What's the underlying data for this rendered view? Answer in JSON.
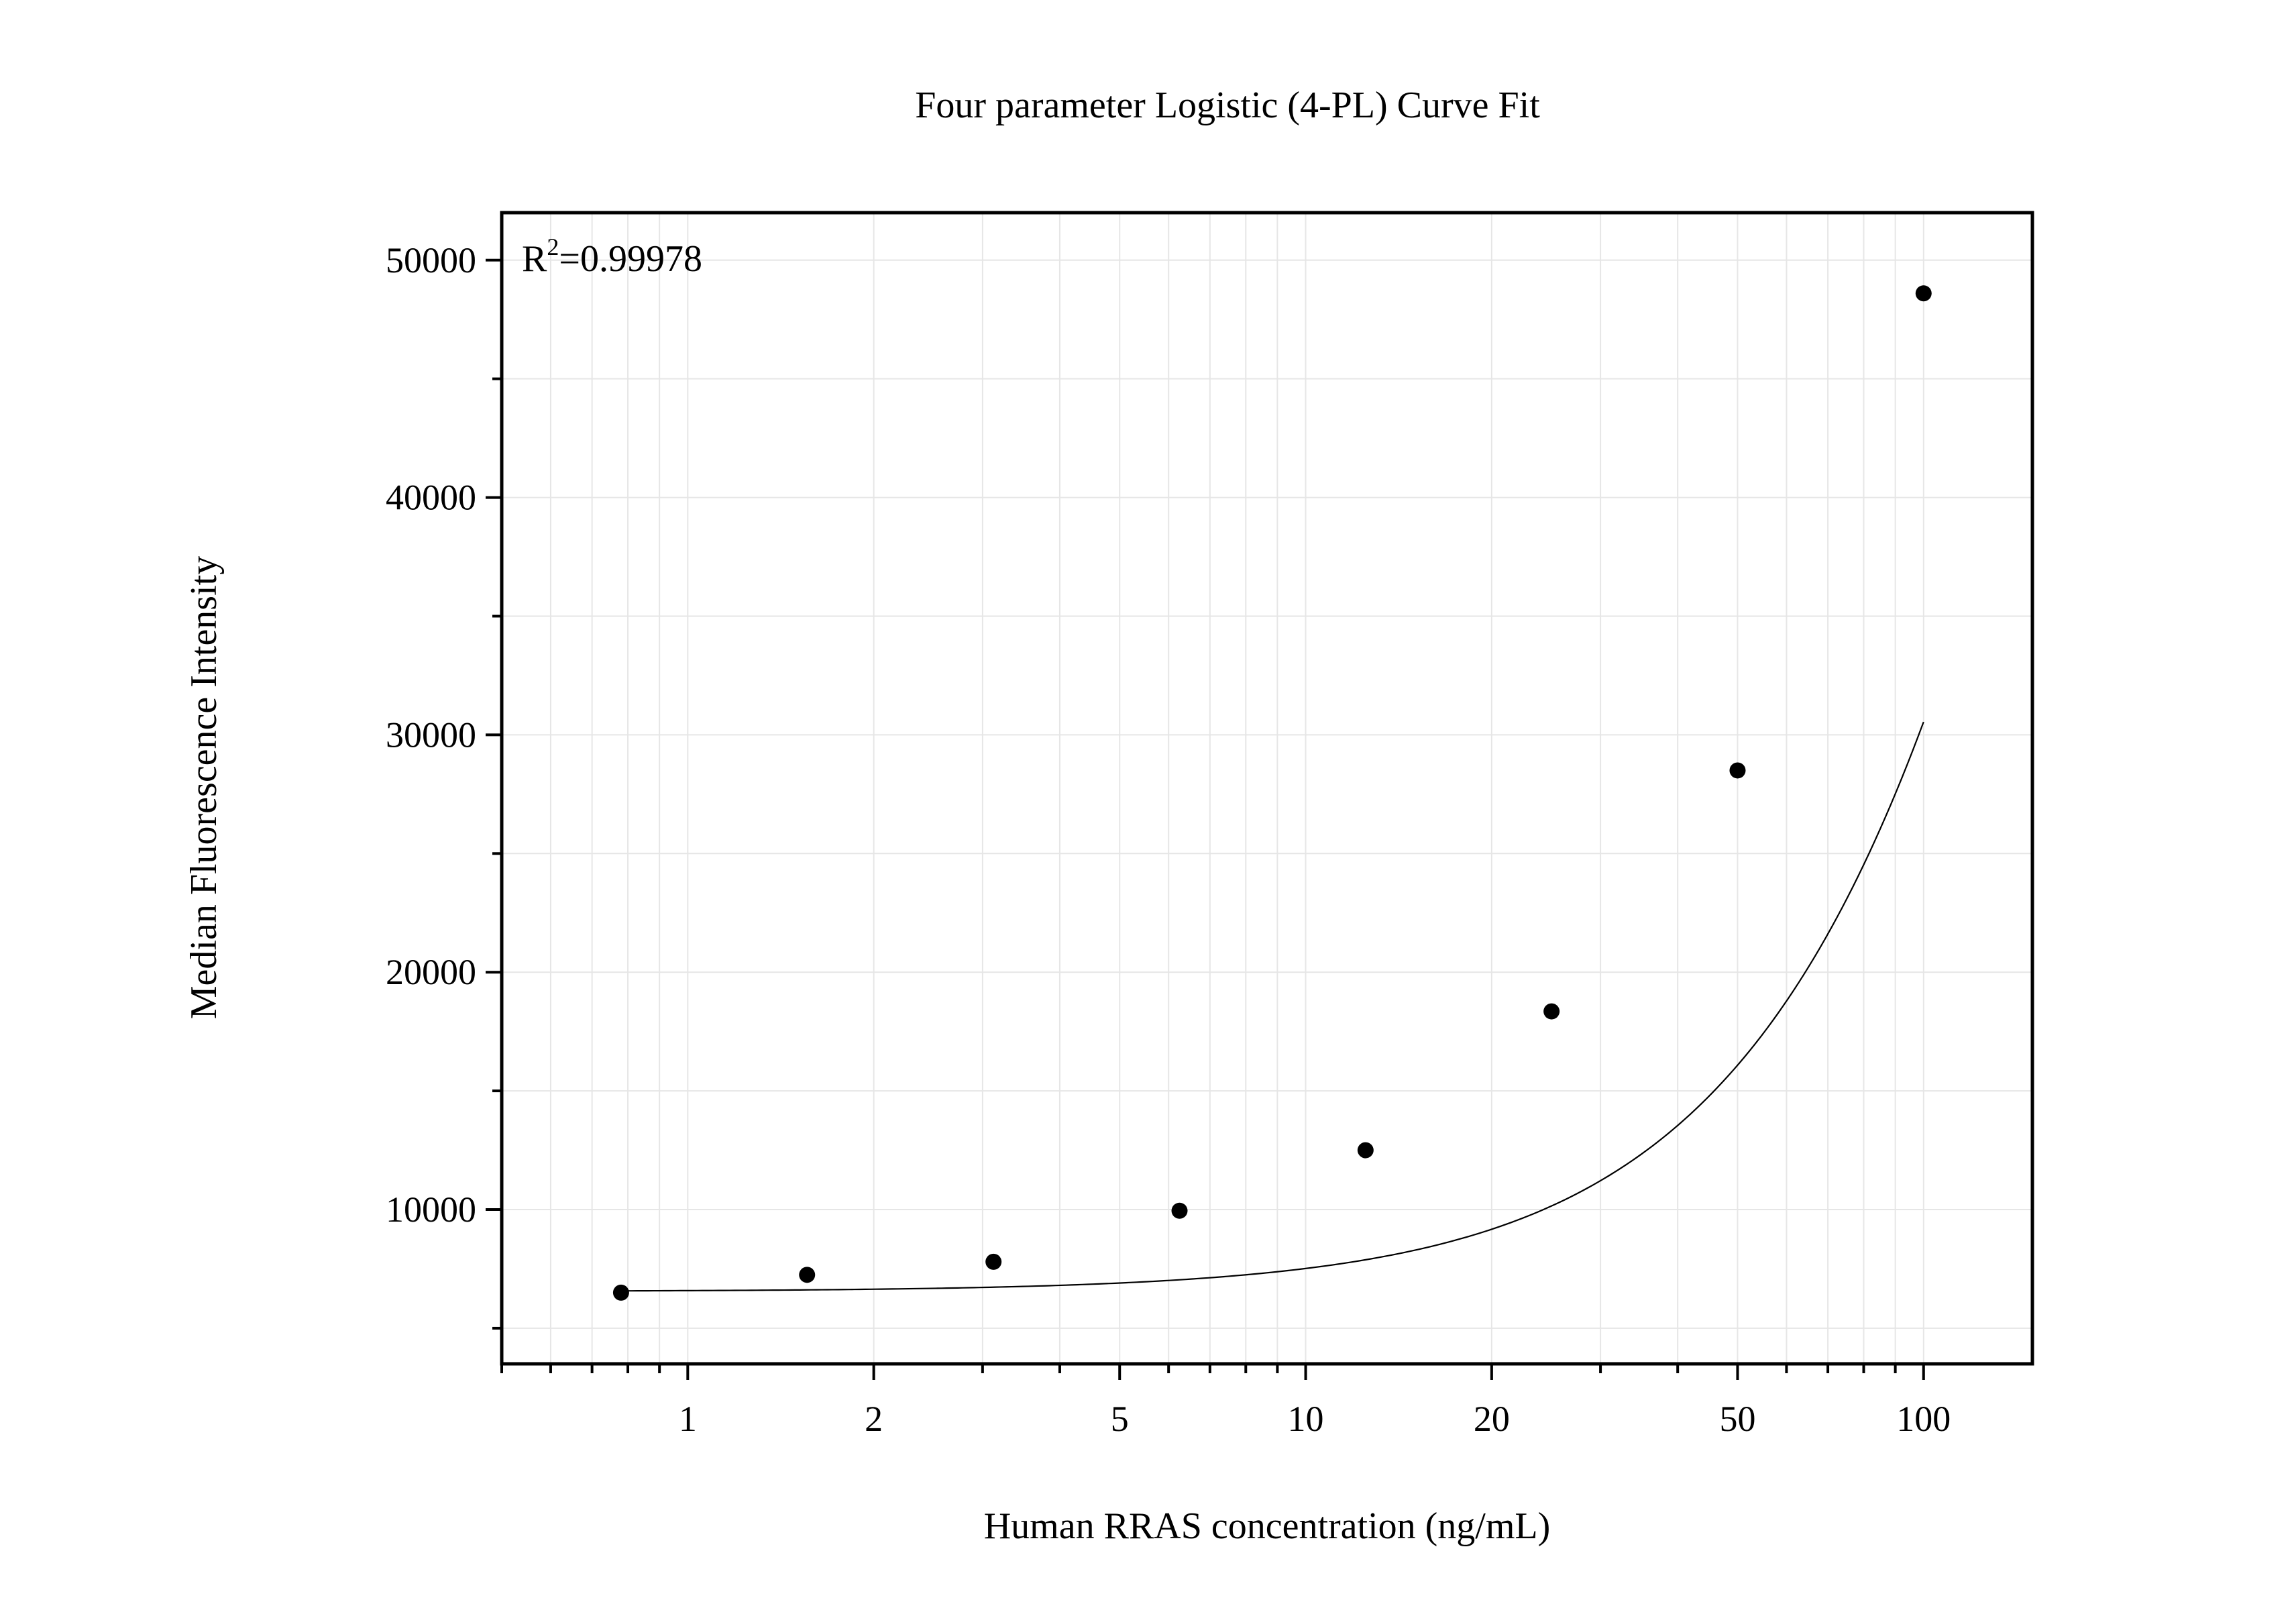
{
  "chart_data": {
    "type": "scatter",
    "title": "Four parameter Logistic (4-PL) Curve Fit",
    "xlabel": "Human RRAS concentration (ng/mL)",
    "ylabel": "Median Fluorescence Intensity",
    "x_scale": "log",
    "xlim": [
      0.5,
      150
    ],
    "ylim": [
      3500,
      52000
    ],
    "x_ticks": [
      1,
      2,
      5,
      10,
      20,
      50,
      100
    ],
    "x_tick_labels": [
      "1",
      "2",
      "5",
      "10",
      "20",
      "50",
      "100"
    ],
    "y_ticks": [
      10000,
      20000,
      30000,
      40000,
      50000
    ],
    "y_tick_labels": [
      "10000",
      "20000",
      "30000",
      "40000",
      "50000"
    ],
    "grid": true,
    "annotation": {
      "prefix": "R",
      "superscript": "2",
      "suffix": "=0.99978",
      "position": "top-left"
    },
    "series": [
      {
        "points": {
          "x": [
            0.78,
            1.56,
            3.125,
            6.25,
            12.5,
            25,
            50,
            100
          ],
          "y": [
            6500,
            7250,
            7800,
            9950,
            12500,
            18350,
            28500,
            48600
          ]
        },
        "fit": {
          "model": "4PL",
          "a": 6550,
          "d": 200000,
          "c": 385,
          "b": 1.45
        },
        "color": "#000000"
      }
    ]
  }
}
